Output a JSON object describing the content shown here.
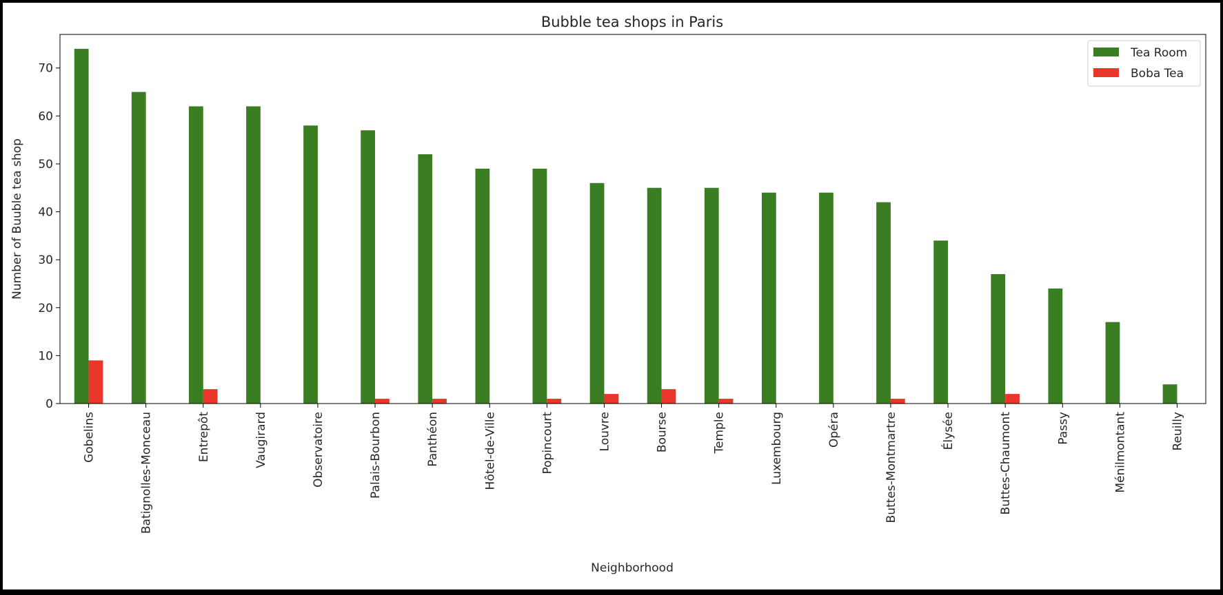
{
  "chart_data": {
    "type": "bar",
    "title": "Bubble tea shops in Paris",
    "xlabel": "Neighborhood",
    "ylabel": "Number of Buuble tea shop",
    "ylim": [
      0,
      77
    ],
    "yticks": [
      0,
      10,
      20,
      30,
      40,
      50,
      60,
      70
    ],
    "grid": false,
    "legend_position": "top-right",
    "categories": [
      "Gobelins",
      "Batignolles-Monceau",
      "Entrepôt",
      "Vaugirard",
      "Observatoire",
      "Palais-Bourbon",
      "Panthéon",
      "Hôtel-de-Ville",
      "Popincourt",
      "Louvre",
      "Bourse",
      "Temple",
      "Luxembourg",
      "Opéra",
      "Buttes-Montmartre",
      "Élysée",
      "Buttes-Chaumont",
      "Passy",
      "Ménilmontant",
      "Reuilly"
    ],
    "series": [
      {
        "name": "Tea Room",
        "color": "#3a7d23",
        "values": [
          74,
          65,
          62,
          62,
          58,
          57,
          52,
          49,
          49,
          46,
          45,
          45,
          44,
          44,
          42,
          34,
          27,
          24,
          17,
          4
        ]
      },
      {
        "name": "Boba Tea",
        "color": "#e8372a",
        "values": [
          9,
          0,
          3,
          0,
          0,
          1,
          1,
          0,
          1,
          2,
          3,
          1,
          0,
          0,
          1,
          0,
          2,
          0,
          0,
          0
        ]
      }
    ]
  }
}
